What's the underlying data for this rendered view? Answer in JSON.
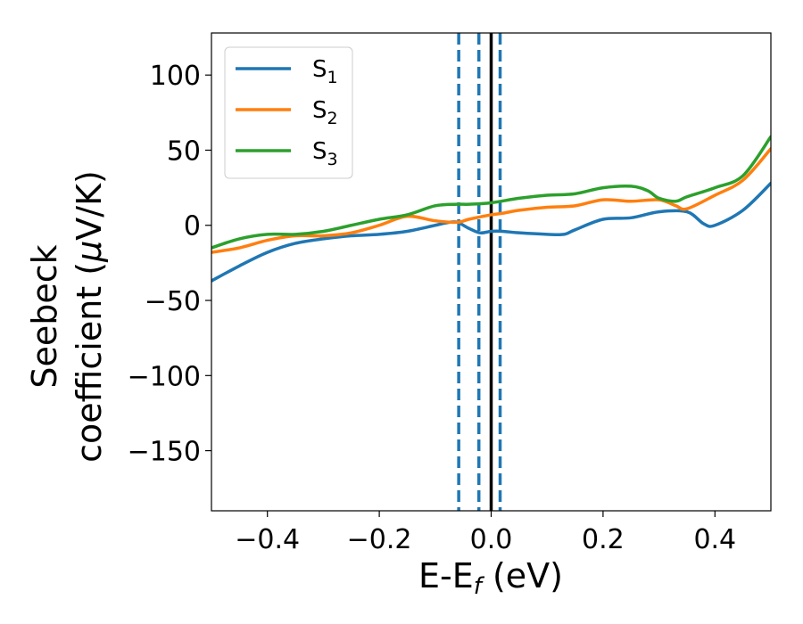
{
  "chart_data": {
    "type": "line",
    "xlabel": {
      "main": "E-E",
      "sub": "f",
      "unit": " (eV)"
    },
    "ylabel": {
      "line1": "Seebeck",
      "line2_prefix": "coefficient  (",
      "line2_mu": "μ",
      "line2_suffix": "V/K)"
    },
    "xlim": [
      -0.5,
      0.5
    ],
    "ylim": [
      -190,
      128
    ],
    "xticks": [
      -0.4,
      -0.2,
      0.0,
      0.2,
      0.4
    ],
    "xtick_labels": [
      "−0.4",
      "−0.2",
      "0.0",
      "0.2",
      "0.4"
    ],
    "yticks": [
      100,
      50,
      0,
      -50,
      -100,
      -150
    ],
    "ytick_labels": [
      "100",
      "50",
      "0",
      "−50",
      "−100",
      "−150"
    ],
    "grid": false,
    "legend_placement": "top-left",
    "vlines": [
      {
        "x": -0.058,
        "style": "dashed",
        "color": "#1f77b4"
      },
      {
        "x": -0.022,
        "style": "dashed",
        "color": "#1f77b4"
      },
      {
        "x": 0.0,
        "style": "solid",
        "color": "#000000"
      },
      {
        "x": 0.016,
        "style": "dashed",
        "color": "#1f77b4"
      }
    ],
    "series": [
      {
        "name": "S",
        "sub": "1",
        "color": "#1f77b4",
        "x": [
          -0.5,
          -0.45,
          -0.4,
          -0.35,
          -0.3,
          -0.25,
          -0.2,
          -0.15,
          -0.1,
          -0.075,
          -0.06,
          -0.04,
          -0.02,
          0.0,
          0.02,
          0.05,
          0.1,
          0.13,
          0.15,
          0.2,
          0.25,
          0.3,
          0.35,
          0.38,
          0.4,
          0.45,
          0.5
        ],
        "y": [
          -37,
          -27,
          -18,
          -12,
          -9,
          -7,
          -6,
          -4,
          0,
          2,
          2,
          -2,
          -5,
          -4,
          -4,
          -5,
          -6,
          -6,
          -3,
          4,
          5,
          9,
          9,
          1,
          0,
          10,
          28
        ]
      },
      {
        "name": "S",
        "sub": "2",
        "color": "#ff7f0e",
        "x": [
          -0.5,
          -0.45,
          -0.4,
          -0.35,
          -0.3,
          -0.25,
          -0.2,
          -0.15,
          -0.1,
          -0.06,
          -0.04,
          0.0,
          0.02,
          0.05,
          0.1,
          0.15,
          0.2,
          0.25,
          0.3,
          0.33,
          0.35,
          0.4,
          0.45,
          0.5
        ],
        "y": [
          -18,
          -15,
          -10,
          -7,
          -7,
          -5,
          0,
          6,
          3,
          2,
          4,
          7,
          8,
          10,
          12,
          13,
          17,
          16,
          17,
          13,
          11,
          20,
          30,
          51
        ]
      },
      {
        "name": "S",
        "sub": "3",
        "color": "#2ca02c",
        "x": [
          -0.5,
          -0.45,
          -0.4,
          -0.35,
          -0.3,
          -0.25,
          -0.2,
          -0.15,
          -0.1,
          -0.06,
          -0.04,
          0.0,
          0.05,
          0.1,
          0.15,
          0.2,
          0.25,
          0.28,
          0.3,
          0.33,
          0.35,
          0.4,
          0.45,
          0.5
        ],
        "y": [
          -15,
          -9,
          -6,
          -6,
          -4,
          0,
          4,
          7,
          13,
          14,
          14,
          15,
          18,
          20,
          21,
          25,
          26,
          23,
          18,
          16,
          19,
          25,
          33,
          59
        ]
      }
    ]
  }
}
